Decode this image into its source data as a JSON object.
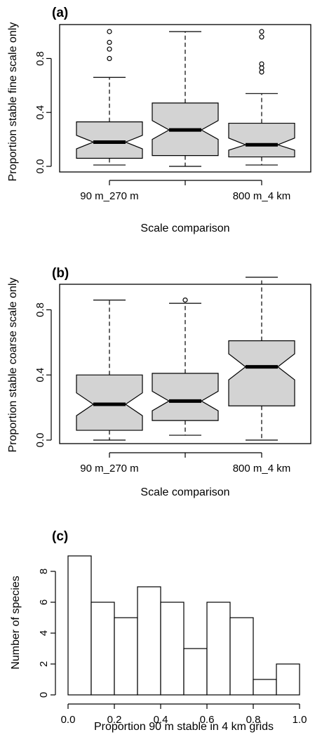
{
  "chart_data": [
    {
      "type": "box",
      "panel_label": "(a)",
      "xlabel": "Scale comparison",
      "ylabel": "Proportion stable fine scale only",
      "ylim": [
        0,
        1
      ],
      "yticks": [
        "0.0",
        "0.4",
        "0.8"
      ],
      "yticks_values": [
        0.0,
        0.4,
        0.8
      ],
      "categories": [
        "90 m_270 m",
        "",
        "800 m_4 km"
      ],
      "box_color": "#d3d3d3",
      "notched": true,
      "boxes": [
        {
          "min": 0.01,
          "q1": 0.06,
          "median": 0.18,
          "q3": 0.33,
          "max": 0.66,
          "notch_low": 0.13,
          "notch_high": 0.23,
          "outliers": [
            0.8,
            0.87,
            0.92,
            1.0
          ]
        },
        {
          "min": 0.0,
          "q1": 0.08,
          "median": 0.27,
          "q3": 0.47,
          "max": 1.0,
          "notch_low": 0.2,
          "notch_high": 0.34,
          "outliers": []
        },
        {
          "min": 0.01,
          "q1": 0.07,
          "median": 0.16,
          "q3": 0.32,
          "max": 0.54,
          "notch_low": 0.12,
          "notch_high": 0.21,
          "outliers": [
            0.7,
            0.73,
            0.76,
            0.96,
            1.0
          ]
        }
      ]
    },
    {
      "type": "box",
      "panel_label": "(b)",
      "xlabel": "Scale comparison",
      "ylabel": "Proportion stable coarse scale only",
      "ylim": [
        0,
        1
      ],
      "yticks": [
        "0.0",
        "0.4",
        "0.8"
      ],
      "yticks_values": [
        0.0,
        0.4,
        0.8
      ],
      "categories": [
        "90 m_270 m",
        "",
        "800 m_4 km"
      ],
      "box_color": "#d3d3d3",
      "notched": true,
      "boxes": [
        {
          "min": 0.0,
          "q1": 0.06,
          "median": 0.22,
          "q3": 0.4,
          "max": 0.86,
          "notch_low": 0.15,
          "notch_high": 0.29,
          "outliers": []
        },
        {
          "min": 0.03,
          "q1": 0.12,
          "median": 0.24,
          "q3": 0.41,
          "max": 0.84,
          "notch_low": 0.18,
          "notch_high": 0.3,
          "outliers": [
            0.86
          ]
        },
        {
          "min": 0.0,
          "q1": 0.21,
          "median": 0.45,
          "q3": 0.61,
          "max": 1.0,
          "notch_low": 0.37,
          "notch_high": 0.53,
          "outliers": []
        }
      ]
    },
    {
      "type": "bar",
      "subtype": "histogram",
      "panel_label": "(c)",
      "xlabel": "Proportion 90 m stable in 4 km grids",
      "ylabel": "Number of species",
      "xlim": [
        0,
        1
      ],
      "ylim": [
        0,
        9
      ],
      "xticks": [
        "0.0",
        "0.2",
        "0.4",
        "0.6",
        "0.8",
        "1.0"
      ],
      "xticks_values": [
        0.0,
        0.2,
        0.4,
        0.6,
        0.8,
        1.0
      ],
      "yticks": [
        "0",
        "2",
        "4",
        "6",
        "8"
      ],
      "yticks_values": [
        0,
        2,
        4,
        6,
        8
      ],
      "bin_edges": [
        0.0,
        0.1,
        0.2,
        0.3,
        0.4,
        0.5,
        0.6,
        0.7,
        0.8,
        0.9,
        1.0
      ],
      "values": [
        9,
        6,
        5,
        7,
        6,
        3,
        6,
        5,
        1,
        2
      ],
      "bar_color": "#ffffff"
    }
  ]
}
